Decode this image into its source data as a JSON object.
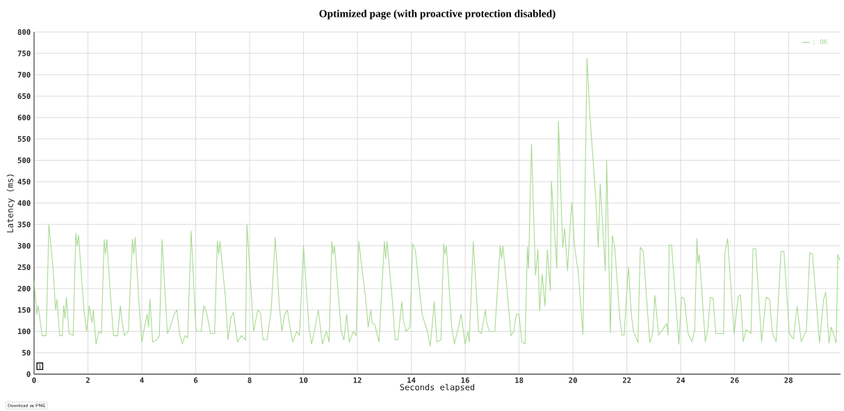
{
  "chart_data": {
    "type": "line",
    "title": "Optimized page (with proactive protection disabled)",
    "xlabel": "Seconds elapsed",
    "ylabel": "Latency (ms)",
    "xlim": [
      0,
      29.93
    ],
    "ylim": [
      0,
      800
    ],
    "xticks": [
      0,
      2,
      4,
      6,
      8,
      10,
      12,
      14,
      16,
      18,
      20,
      22,
      24,
      26,
      28
    ],
    "yticks": [
      0,
      50,
      100,
      150,
      200,
      250,
      300,
      350,
      400,
      450,
      500,
      550,
      600,
      650,
      700,
      750,
      800
    ],
    "grid": true,
    "legend": "top right",
    "annotations": [
      "1",
      "Download as PNG"
    ],
    "series": [
      {
        "name": ": OK",
        "color": "#a3d98c",
        "x": [
          0,
          0.1,
          0.15,
          0.3,
          0.45,
          0.55,
          0.7,
          0.8,
          0.85,
          0.95,
          1.05,
          1.1,
          1.15,
          1.2,
          1.3,
          1.45,
          1.55,
          1.6,
          1.65,
          1.85,
          1.95,
          2.05,
          2.15,
          2.2,
          2.3,
          2.4,
          2.5,
          2.6,
          2.65,
          2.7,
          2.85,
          2.95,
          3.1,
          3.2,
          3.25,
          3.35,
          3.5,
          3.65,
          3.7,
          3.75,
          3.9,
          4.0,
          4.1,
          4.2,
          4.25,
          4.3,
          4.4,
          4.55,
          4.65,
          4.75,
          4.85,
          4.95,
          5.05,
          5.2,
          5.3,
          5.4,
          5.5,
          5.6,
          5.7,
          5.83,
          6.0,
          6.05,
          6.2,
          6.3,
          6.4,
          6.55,
          6.7,
          6.8,
          6.85,
          6.9,
          7.1,
          7.2,
          7.3,
          7.4,
          7.45,
          7.55,
          7.7,
          7.85,
          7.9,
          8.05,
          8.15,
          8.3,
          8.4,
          8.5,
          8.65,
          8.8,
          8.95,
          9.1,
          9.2,
          9.3,
          9.4,
          9.5,
          9.6,
          9.75,
          9.85,
          10.0,
          10.2,
          10.3,
          10.4,
          10.55,
          10.7,
          10.85,
          10.95,
          11.05,
          11.1,
          11.15,
          11.4,
          11.5,
          11.6,
          11.7,
          11.85,
          11.95,
          12.05,
          12.3,
          12.4,
          12.5,
          12.55,
          12.65,
          12.8,
          13.0,
          13.05,
          13.1,
          13.3,
          13.4,
          13.5,
          13.65,
          13.7,
          13.8,
          13.95,
          14.05,
          14.15,
          14.4,
          14.6,
          14.7,
          14.8,
          14.85,
          14.95,
          15.1,
          15.2,
          15.25,
          15.3,
          15.5,
          15.6,
          15.75,
          15.85,
          16.0,
          16.1,
          16.15,
          16.3,
          16.5,
          16.6,
          16.75,
          16.8,
          16.9,
          17.1,
          17.3,
          17.35,
          17.4,
          17.55,
          17.7,
          17.8,
          17.9,
          18.0,
          18.1,
          18.22,
          18.31,
          18.35,
          18.46,
          18.61,
          18.7,
          18.76,
          18.86,
          18.96,
          19.05,
          19.16,
          19.2,
          19.4,
          19.46,
          19.62,
          19.69,
          19.8,
          19.89,
          19.96,
          20.06,
          20.19,
          20.37,
          20.52,
          20.63,
          20.85,
          20.94,
          21.01,
          21.2,
          21.25,
          21.39,
          21.46,
          21.55,
          21.73,
          21.82,
          21.9,
          21.99,
          22.06,
          22.17,
          22.25,
          22.41,
          22.5,
          22.61,
          22.85,
          22.96,
          23.04,
          23.18,
          23.48,
          23.53,
          23.57,
          23.66,
          23.93,
          24.03,
          24.13,
          24.27,
          24.42,
          24.52,
          24.6,
          24.64,
          24.69,
          24.91,
          25.0,
          25.1,
          25.2,
          25.3,
          25.59,
          25.64,
          25.74,
          25.98,
          26.13,
          26.22,
          26.32,
          26.42,
          26.61,
          26.68,
          26.78,
          27.0,
          27.17,
          27.3,
          27.4,
          27.54,
          27.72,
          27.83,
          28.03,
          28.18,
          28.32,
          28.47,
          28.66,
          28.79,
          28.89,
          29.15,
          29.3,
          29.38,
          29.5,
          29.59,
          29.77,
          29.83,
          29.91
        ],
        "values": [
          220,
          140,
          160,
          90,
          90,
          350,
          250,
          150,
          175,
          90,
          90,
          160,
          130,
          180,
          95,
          90,
          330,
          300,
          325,
          150,
          100,
          160,
          120,
          150,
          70,
          100,
          95,
          315,
          280,
          315,
          170,
          90,
          90,
          160,
          130,
          90,
          100,
          315,
          280,
          320,
          160,
          75,
          110,
          140,
          110,
          175,
          75,
          80,
          90,
          315,
          200,
          95,
          110,
          140,
          150,
          95,
          70,
          90,
          85,
          335,
          110,
          100,
          100,
          160,
          145,
          95,
          95,
          310,
          280,
          310,
          180,
          80,
          130,
          145,
          120,
          75,
          90,
          80,
          350,
          200,
          100,
          150,
          145,
          80,
          80,
          150,
          320,
          160,
          100,
          140,
          150,
          110,
          75,
          100,
          90,
          300,
          110,
          70,
          100,
          150,
          70,
          100,
          75,
          310,
          280,
          300,
          100,
          80,
          140,
          75,
          100,
          90,
          310,
          180,
          110,
          150,
          120,
          115,
          75,
          310,
          270,
          310,
          170,
          80,
          80,
          170,
          130,
          100,
          110,
          305,
          290,
          140,
          100,
          65,
          130,
          170,
          75,
          80,
          305,
          280,
          300,
          110,
          70,
          110,
          140,
          70,
          100,
          75,
          310,
          100,
          95,
          150,
          120,
          100,
          100,
          300,
          270,
          300,
          200,
          90,
          100,
          140,
          140,
          75,
          71,
          297,
          247,
          538,
          231,
          291,
          148,
          234,
          159,
          291,
          195,
          451,
          247,
          591,
          297,
          341,
          242,
          346,
          401,
          297,
          242,
          93,
          739,
          604,
          407,
          297,
          445,
          242,
          500,
          96,
          324,
          297,
          137,
          91,
          91,
          187,
          250,
          137,
          99,
          74,
          297,
          286,
          74,
          96,
          184,
          91,
          118,
          91,
          302,
          302,
          70,
          180,
          177,
          95,
          76,
          104,
          317,
          259,
          280,
          76,
          104,
          180,
          177,
          95,
          95,
          284,
          317,
          95,
          180,
          186,
          76,
          104,
          95,
          293,
          293,
          76,
          180,
          174,
          95,
          76,
          287,
          287,
          95,
          82,
          159,
          76,
          101,
          284,
          280,
          73,
          174,
          192,
          73,
          110,
          73,
          280,
          265
        ]
      }
    ]
  }
}
